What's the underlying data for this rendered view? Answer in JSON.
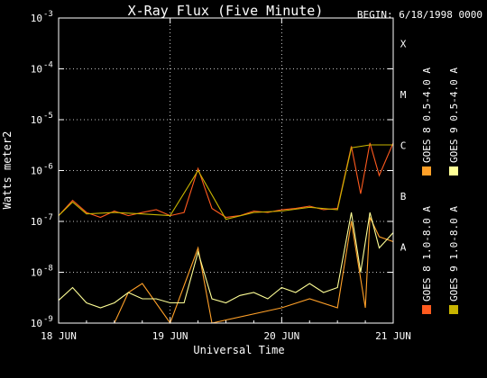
{
  "chart_data": {
    "type": "line",
    "title": "X-Ray Flux (Five Minute)",
    "begin_label": "BEGIN: 6/18/1998 0000",
    "xlabel": "Universal Time",
    "ylabel": "Watts meter2",
    "x_ticks": [
      "18 JUN",
      "19 JUN",
      "20 JUN",
      "21 JUN"
    ],
    "xlim": [
      "1998-06-18 00:00",
      "1998-06-21 00:00"
    ],
    "y_scale": "log",
    "ylim": [
      1e-09,
      0.001
    ],
    "y_ticks": [
      {
        "base": "10",
        "exp": "-9",
        "value": 1e-09
      },
      {
        "base": "10",
        "exp": "-8",
        "value": 1e-08
      },
      {
        "base": "10",
        "exp": "-7",
        "value": 1e-07
      },
      {
        "base": "10",
        "exp": "-6",
        "value": 1e-06
      },
      {
        "base": "10",
        "exp": "-5",
        "value": 1e-05
      },
      {
        "base": "10",
        "exp": "-4",
        "value": 0.0001
      },
      {
        "base": "10",
        "exp": "-3",
        "value": 0.001
      }
    ],
    "flare_classes": [
      {
        "label": "A",
        "value": 1e-08
      },
      {
        "label": "B",
        "value": 1e-07
      },
      {
        "label": "C",
        "value": 1e-06
      },
      {
        "label": "M",
        "value": 1e-05
      },
      {
        "label": "X",
        "value": 0.0001
      }
    ],
    "grid": "dotted",
    "legend_position": "right, vertical",
    "series": [
      {
        "name": "GOES 8 1.0-8.0 A",
        "color": "#ff5a1e",
        "points": [
          [
            "1998-06-18 00:00",
            1.3e-07
          ],
          [
            "1998-06-18 03:00",
            2.6e-07
          ],
          [
            "1998-06-18 06:00",
            1.5e-07
          ],
          [
            "1998-06-18 09:00",
            1.2e-07
          ],
          [
            "1998-06-18 12:00",
            1.6e-07
          ],
          [
            "1998-06-18 15:00",
            1.3e-07
          ],
          [
            "1998-06-18 18:00",
            1.5e-07
          ],
          [
            "1998-06-18 21:00",
            1.7e-07
          ],
          [
            "1998-06-19 00:00",
            1.3e-07
          ],
          [
            "1998-06-19 03:00",
            1.5e-07
          ],
          [
            "1998-06-19 06:00",
            1.1e-06
          ],
          [
            "1998-06-19 09:00",
            1.8e-07
          ],
          [
            "1998-06-19 12:00",
            1.2e-07
          ],
          [
            "1998-06-19 15:00",
            1.3e-07
          ],
          [
            "1998-06-19 18:00",
            1.6e-07
          ],
          [
            "1998-06-19 21:00",
            1.5e-07
          ],
          [
            "1998-06-20 00:00",
            1.7e-07
          ],
          [
            "1998-06-20 03:00",
            1.8e-07
          ],
          [
            "1998-06-20 06:00",
            2e-07
          ],
          [
            "1998-06-20 09:00",
            1.7e-07
          ],
          [
            "1998-06-20 12:00",
            1.8e-07
          ],
          [
            "1998-06-20 15:00",
            3e-06
          ],
          [
            "1998-06-20 17:00",
            3.5e-07
          ],
          [
            "1998-06-20 19:00",
            3.5e-06
          ],
          [
            "1998-06-20 21:00",
            8e-07
          ],
          [
            "1998-06-21 00:00",
            3.5e-06
          ]
        ]
      },
      {
        "name": "GOES 8 0.5-4.0 A",
        "color": "#ffa028",
        "points": [
          [
            "1998-06-18 00:00",
            1e-09
          ],
          [
            "1998-06-18 12:00",
            1e-09
          ],
          [
            "1998-06-18 15:00",
            4e-09
          ],
          [
            "1998-06-18 18:00",
            6e-09
          ],
          [
            "1998-06-19 00:00",
            1e-09
          ],
          [
            "1998-06-19 06:00",
            3e-08
          ],
          [
            "1998-06-19 09:00",
            1e-09
          ],
          [
            "1998-06-20 00:00",
            2e-09
          ],
          [
            "1998-06-20 06:00",
            3e-09
          ],
          [
            "1998-06-20 12:00",
            2e-09
          ],
          [
            "1998-06-20 15:00",
            1e-07
          ],
          [
            "1998-06-20 18:00",
            2e-09
          ],
          [
            "1998-06-20 19:00",
            1.2e-07
          ],
          [
            "1998-06-20 21:00",
            5e-08
          ],
          [
            "1998-06-21 00:00",
            4e-08
          ]
        ]
      },
      {
        "name": "GOES 9 1.0-8.0 A",
        "color": "#c8b400",
        "points": [
          [
            "1998-06-18 00:00",
            1.3e-07
          ],
          [
            "1998-06-18 03:00",
            2.4e-07
          ],
          [
            "1998-06-18 06:00",
            1.4e-07
          ],
          [
            "1998-06-18 12:00",
            1.5e-07
          ],
          [
            "1998-06-18 18:00",
            1.4e-07
          ],
          [
            "1998-06-19 00:00",
            1.3e-07
          ],
          [
            "1998-06-19 06:00",
            1e-06
          ],
          [
            "1998-06-19 12:00",
            1.1e-07
          ],
          [
            "1998-06-19 18:00",
            1.5e-07
          ],
          [
            "1998-06-20 00:00",
            1.6e-07
          ],
          [
            "1998-06-20 06:00",
            1.9e-07
          ],
          [
            "1998-06-20 12:00",
            1.7e-07
          ],
          [
            "1998-06-20 15:00",
            2.8e-06
          ],
          [
            "1998-06-20 19:00",
            3.2e-06
          ],
          [
            "1998-06-21 00:00",
            3.2e-06
          ]
        ]
      },
      {
        "name": "GOES 9 0.5-4.0 A",
        "color": "#ffff96",
        "points": [
          [
            "1998-06-18 00:00",
            2.8e-09
          ],
          [
            "1998-06-18 03:00",
            5e-09
          ],
          [
            "1998-06-18 06:00",
            2.5e-09
          ],
          [
            "1998-06-18 09:00",
            2e-09
          ],
          [
            "1998-06-18 12:00",
            2.5e-09
          ],
          [
            "1998-06-18 15:00",
            4e-09
          ],
          [
            "1998-06-18 18:00",
            3e-09
          ],
          [
            "1998-06-18 21:00",
            3e-09
          ],
          [
            "1998-06-19 00:00",
            2.5e-09
          ],
          [
            "1998-06-19 03:00",
            2.5e-09
          ],
          [
            "1998-06-19 06:00",
            2.5e-08
          ],
          [
            "1998-06-19 09:00",
            3e-09
          ],
          [
            "1998-06-19 12:00",
            2.5e-09
          ],
          [
            "1998-06-19 15:00",
            3.5e-09
          ],
          [
            "1998-06-19 18:00",
            4e-09
          ],
          [
            "1998-06-19 21:00",
            3e-09
          ],
          [
            "1998-06-20 00:00",
            5e-09
          ],
          [
            "1998-06-20 03:00",
            4e-09
          ],
          [
            "1998-06-20 06:00",
            6e-09
          ],
          [
            "1998-06-20 09:00",
            4e-09
          ],
          [
            "1998-06-20 12:00",
            5e-09
          ],
          [
            "1998-06-20 15:00",
            1.5e-07
          ],
          [
            "1998-06-20 17:00",
            1e-08
          ],
          [
            "1998-06-20 19:00",
            1.5e-07
          ],
          [
            "1998-06-20 21:00",
            3e-08
          ],
          [
            "1998-06-21 00:00",
            6e-08
          ]
        ]
      }
    ]
  }
}
